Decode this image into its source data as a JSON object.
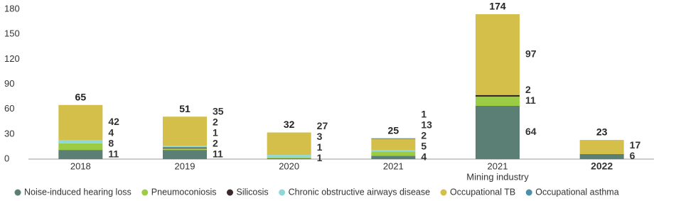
{
  "chart_data": {
    "type": "stacked-bar",
    "categories": [
      "2018",
      "2019",
      "2020",
      "2021",
      "2021",
      "2022"
    ],
    "category_notes": [
      null,
      null,
      null,
      null,
      "Mining industry",
      null
    ],
    "totals": [
      65,
      51,
      32,
      25,
      174,
      23
    ],
    "series": [
      {
        "name": "Noise-induced hearing loss",
        "color": "#5b7f74",
        "values": [
          11,
          11,
          1,
          4,
          64,
          6
        ]
      },
      {
        "name": "Pneumoconiosis",
        "color": "#9ccc45",
        "values": [
          8,
          2,
          1,
          5,
          11,
          null
        ]
      },
      {
        "name": "Silicosis",
        "color": "#3a2a2a",
        "values": [
          null,
          1,
          null,
          null,
          2,
          null
        ]
      },
      {
        "name": "Chronic obstructive airways disease",
        "color": "#8fd8d8",
        "values": [
          4,
          2,
          3,
          2,
          null,
          null
        ]
      },
      {
        "name": "Occupational TB",
        "color": "#d4bf4b",
        "values": [
          42,
          35,
          27,
          13,
          97,
          17
        ]
      },
      {
        "name": "Occupational asthma",
        "color": "#4d8fa8",
        "values": [
          null,
          null,
          null,
          1,
          null,
          null
        ]
      }
    ],
    "ylim": [
      0,
      180
    ],
    "yticks": [
      0,
      30,
      60,
      90,
      120,
      150,
      180
    ],
    "grid": false
  }
}
